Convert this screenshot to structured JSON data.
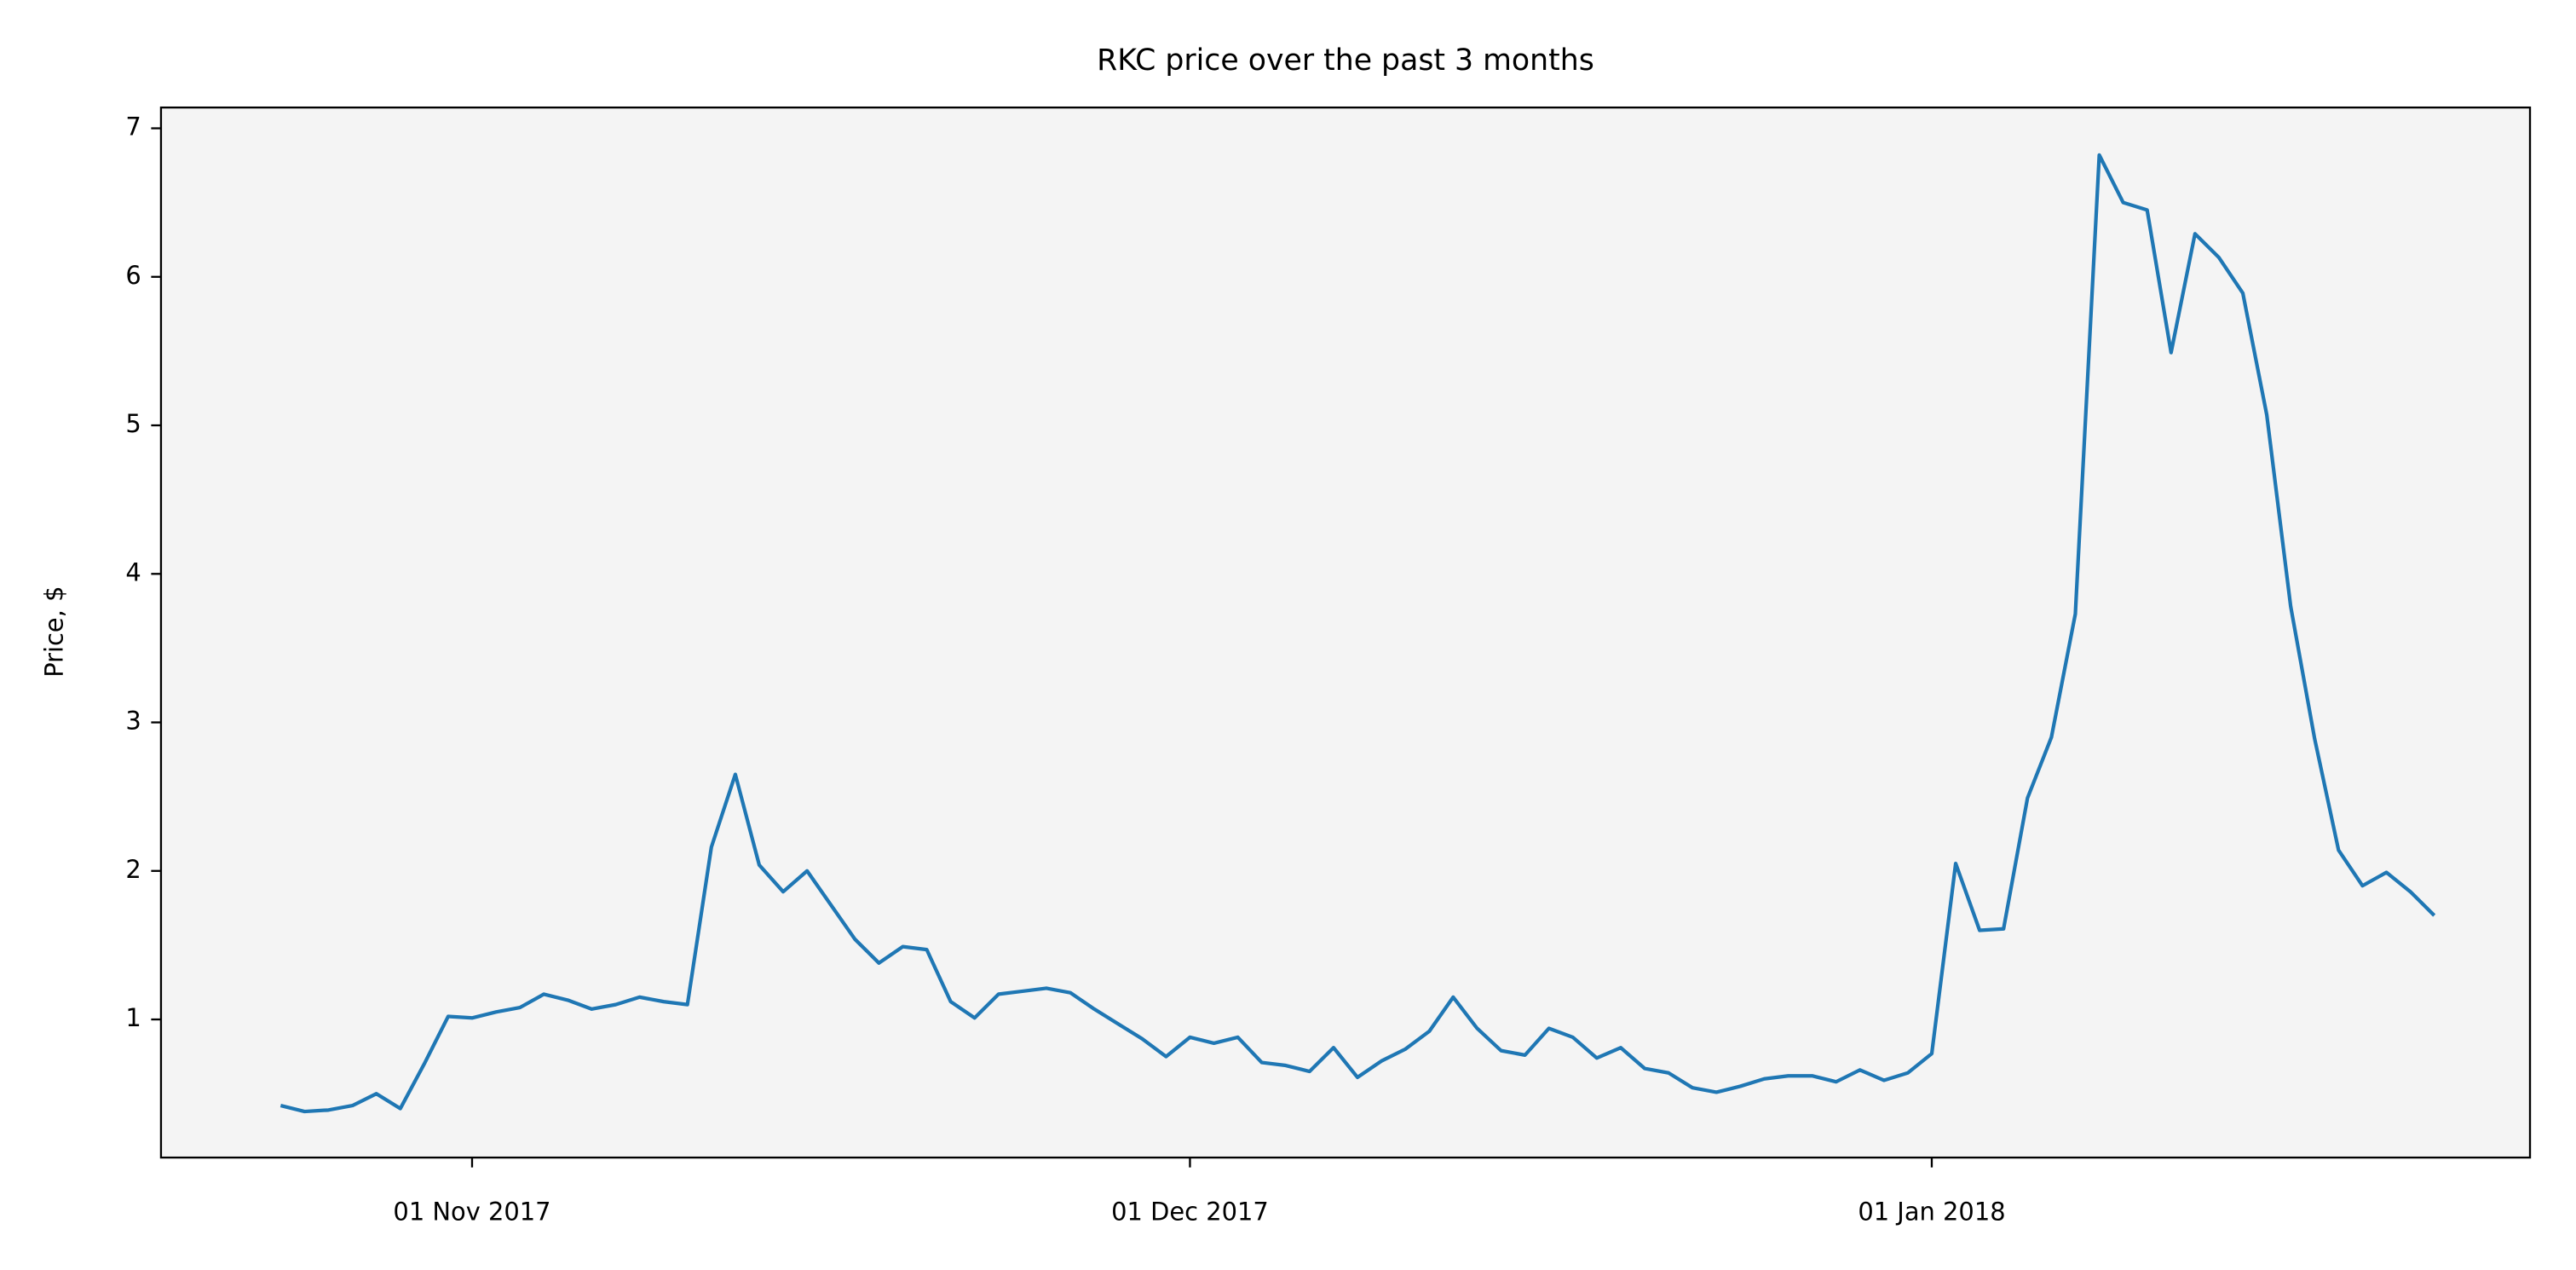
{
  "chart_data": {
    "type": "line",
    "title": "RKC price over the past 3 months",
    "y_label": "Price, $",
    "color": "#1f77b4",
    "x": [
      "2017-10-24",
      "2017-10-25",
      "2017-10-26",
      "2017-10-27",
      "2017-10-28",
      "2017-10-29",
      "2017-10-30",
      "2017-10-31",
      "2017-11-01",
      "2017-11-02",
      "2017-11-03",
      "2017-11-04",
      "2017-11-05",
      "2017-11-06",
      "2017-11-07",
      "2017-11-08",
      "2017-11-09",
      "2017-11-10",
      "2017-11-11",
      "2017-11-12",
      "2017-11-13",
      "2017-11-14",
      "2017-11-15",
      "2017-11-16",
      "2017-11-17",
      "2017-11-18",
      "2017-11-19",
      "2017-11-20",
      "2017-11-21",
      "2017-11-22",
      "2017-11-23",
      "2017-11-24",
      "2017-11-25",
      "2017-11-26",
      "2017-11-27",
      "2017-11-28",
      "2017-11-29",
      "2017-11-30",
      "2017-12-01",
      "2017-12-02",
      "2017-12-03",
      "2017-12-04",
      "2017-12-05",
      "2017-12-06",
      "2017-12-07",
      "2017-12-08",
      "2017-12-09",
      "2017-12-10",
      "2017-12-11",
      "2017-12-12",
      "2017-12-13",
      "2017-12-14",
      "2017-12-15",
      "2017-12-16",
      "2017-12-17",
      "2017-12-18",
      "2017-12-19",
      "2017-12-20",
      "2017-12-21",
      "2017-12-22",
      "2017-12-23",
      "2017-12-24",
      "2017-12-25",
      "2017-12-26",
      "2017-12-27",
      "2017-12-28",
      "2017-12-29",
      "2017-12-30",
      "2017-12-31",
      "2018-01-01",
      "2018-01-02",
      "2018-01-03",
      "2018-01-04",
      "2018-01-05",
      "2018-01-06",
      "2018-01-07",
      "2018-01-08",
      "2018-01-09",
      "2018-01-10",
      "2018-01-11",
      "2018-01-12",
      "2018-01-13",
      "2018-01-14",
      "2018-01-15",
      "2018-01-16",
      "2018-01-17",
      "2018-01-18",
      "2018-01-19",
      "2018-01-20",
      "2018-01-21",
      "2018-01-22"
    ],
    "values": [
      0.42,
      0.38,
      0.39,
      0.42,
      0.5,
      0.4,
      0.7,
      1.02,
      1.01,
      1.05,
      1.08,
      1.17,
      1.13,
      1.07,
      1.1,
      1.15,
      1.12,
      1.1,
      2.16,
      2.65,
      2.04,
      1.86,
      2.0,
      1.77,
      1.54,
      1.38,
      1.49,
      1.47,
      1.12,
      1.01,
      1.17,
      1.19,
      1.21,
      1.18,
      1.07,
      0.97,
      0.87,
      0.75,
      0.88,
      0.84,
      0.88,
      0.71,
      0.69,
      0.65,
      0.81,
      0.61,
      0.72,
      0.8,
      0.92,
      1.15,
      0.94,
      0.79,
      0.76,
      0.94,
      0.88,
      0.74,
      0.81,
      0.67,
      0.64,
      0.54,
      0.51,
      0.55,
      0.6,
      0.62,
      0.62,
      0.58,
      0.66,
      0.59,
      0.64,
      0.77,
      2.05,
      1.6,
      1.61,
      2.49,
      2.9,
      3.73,
      6.82,
      6.5,
      6.45,
      5.49,
      6.29,
      6.13,
      5.89,
      5.07,
      3.78,
      2.89,
      2.14,
      1.9,
      1.99,
      1.86,
      1.7
    ],
    "xlim": [
      "2017-10-19",
      "2018-01-26"
    ],
    "xticks": [
      {
        "value": "2017-11-01",
        "label": "01 Nov 2017"
      },
      {
        "value": "2017-12-01",
        "label": "01 Dec 2017"
      },
      {
        "value": "2018-01-01",
        "label": "01 Jan 2018"
      }
    ],
    "ylim": [
      0.07,
      7.14
    ],
    "yticks": [
      1,
      2,
      3,
      4,
      5,
      6,
      7
    ],
    "grid": false,
    "background": "#f4f4f4"
  }
}
